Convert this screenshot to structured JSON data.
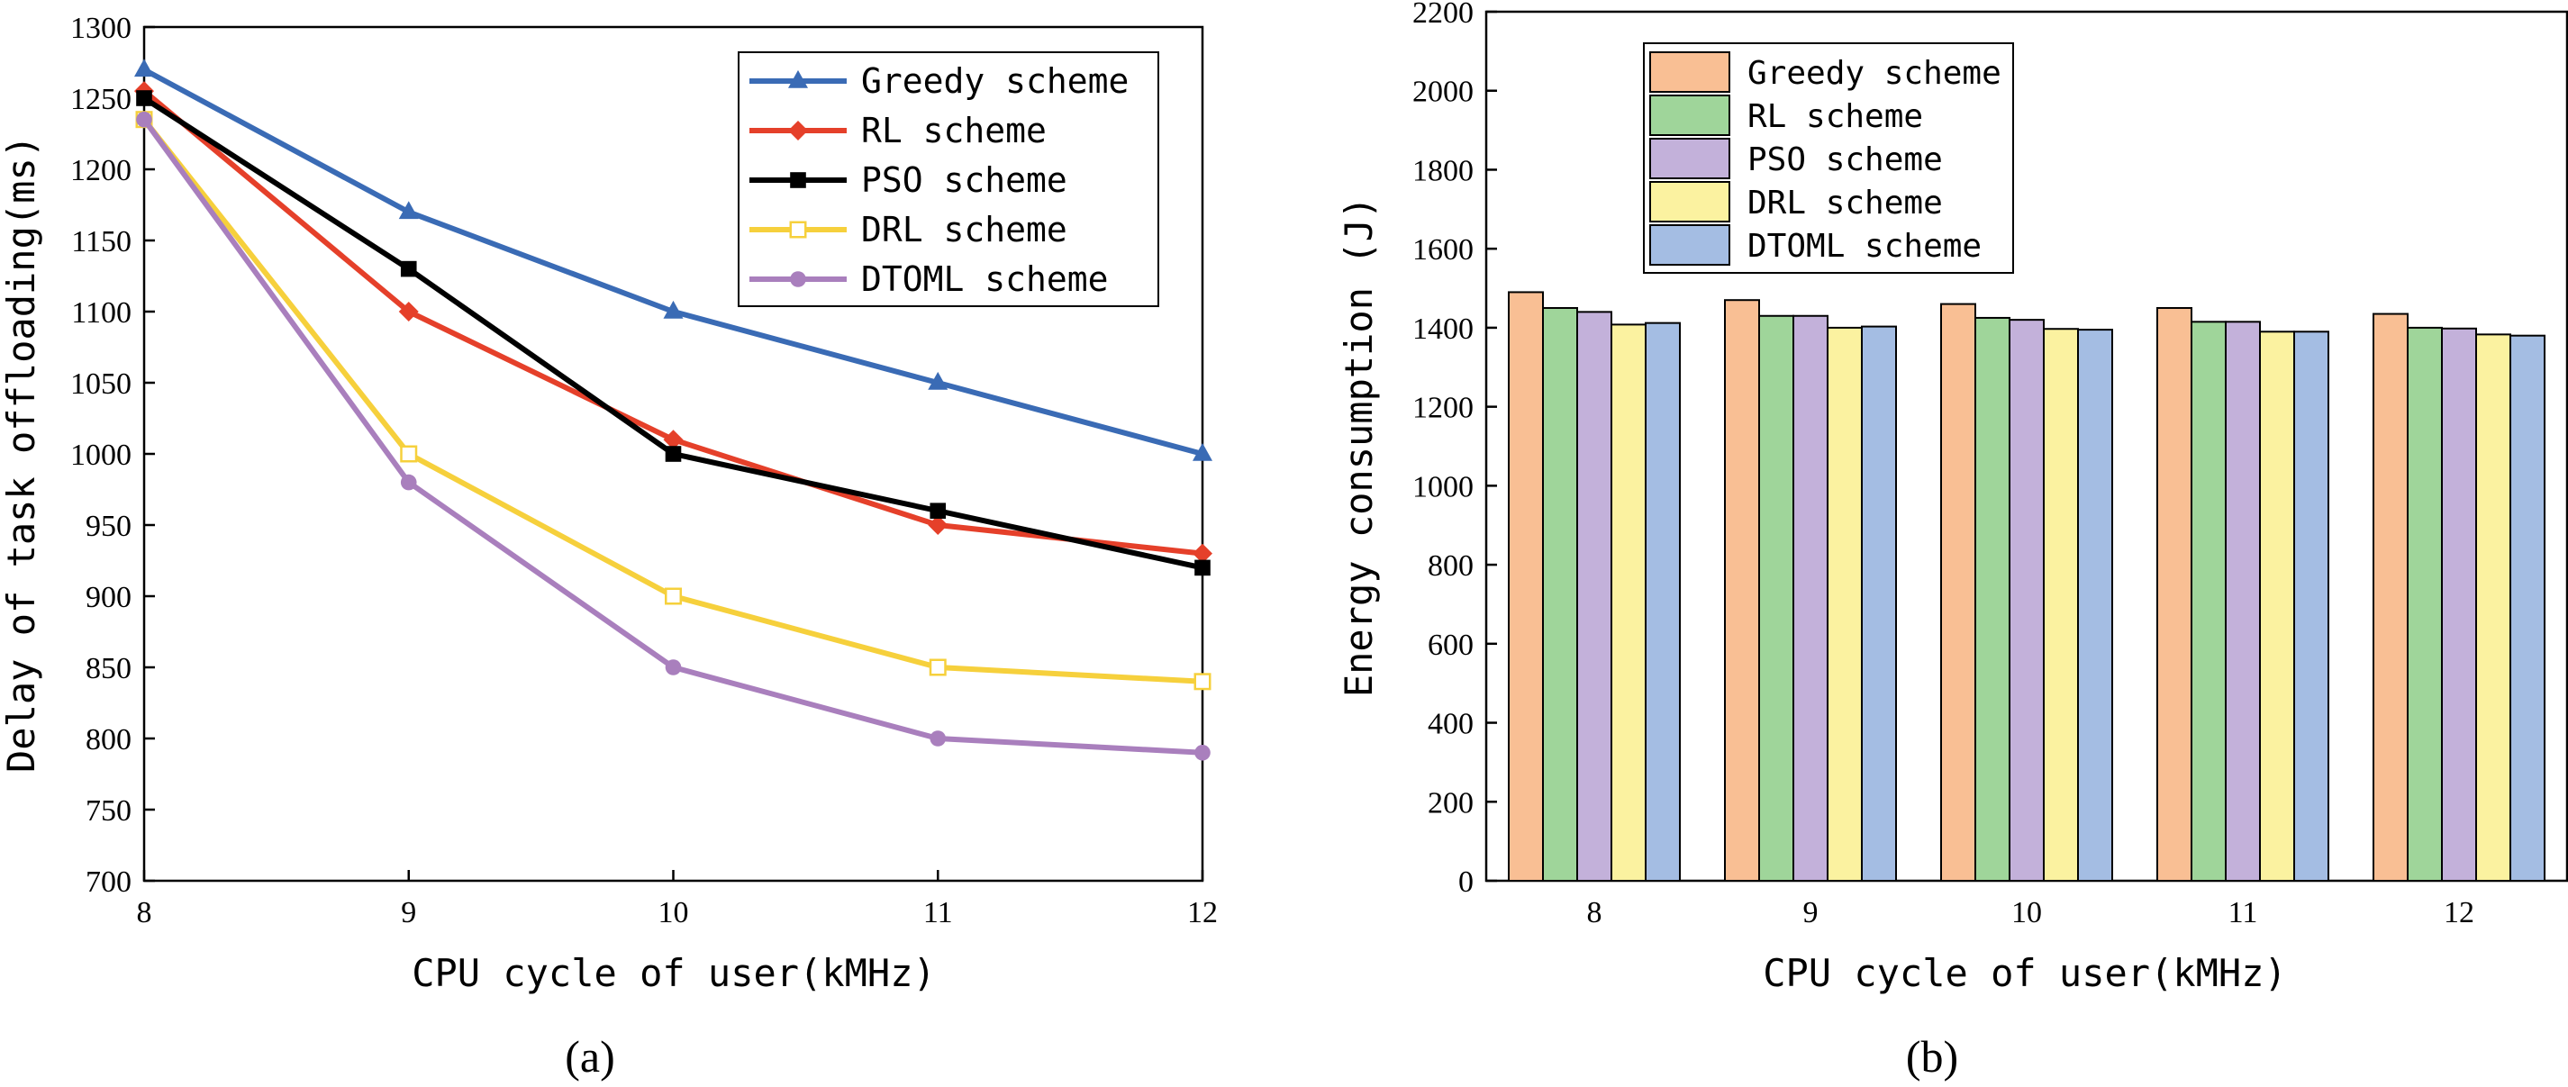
{
  "chart_data": [
    {
      "type": "line",
      "panel_label": "(a)",
      "xlabel": "CPU cycle of user(kMHz)",
      "ylabel": "Delay of task offloading(ms)",
      "x": [
        8,
        9,
        10,
        11,
        12
      ],
      "xlim": [
        8,
        12
      ],
      "ylim": [
        700,
        1300
      ],
      "xticks": [
        "8",
        "9",
        "10",
        "11",
        "12"
      ],
      "yticks": [
        "700",
        "750",
        "800",
        "850",
        "900",
        "950",
        "1000",
        "1050",
        "1100",
        "1150",
        "1200",
        "1250",
        "1300"
      ],
      "legend_position": "top-right",
      "series": [
        {
          "name": "Greedy scheme",
          "values": [
            1270,
            1170,
            1100,
            1050,
            1000
          ],
          "color": "#3a6bb5",
          "marker": "triangle"
        },
        {
          "name": "RL scheme",
          "values": [
            1255,
            1100,
            1010,
            950,
            930
          ],
          "color": "#e5402a",
          "marker": "diamond"
        },
        {
          "name": "PSO scheme",
          "values": [
            1250,
            1130,
            1000,
            960,
            920
          ],
          "color": "#000000",
          "marker": "square"
        },
        {
          "name": "DRL scheme",
          "values": [
            1235,
            1000,
            900,
            850,
            840
          ],
          "color": "#f6d03c",
          "marker": "open-square"
        },
        {
          "name": "DTOML scheme",
          "values": [
            1235,
            980,
            850,
            800,
            790
          ],
          "color": "#a97fbd",
          "marker": "circle"
        }
      ]
    },
    {
      "type": "bar",
      "panel_label": "(b)",
      "xlabel": "CPU cycle of user(kMHz)",
      "ylabel": "Energy consumption (J)",
      "categories": [
        "8",
        "9",
        "10",
        "11",
        "12"
      ],
      "ylim": [
        0,
        2200
      ],
      "yticks": [
        "0",
        "200",
        "400",
        "600",
        "800",
        "1000",
        "1200",
        "1400",
        "1600",
        "1800",
        "2000",
        "2200"
      ],
      "legend_position": "top-left",
      "series": [
        {
          "name": "Greedy scheme",
          "values": [
            1490,
            1470,
            1460,
            1450,
            1435
          ],
          "color": "#f9bf94"
        },
        {
          "name": "RL scheme",
          "values": [
            1450,
            1430,
            1425,
            1415,
            1400
          ],
          "color": "#9fd59a"
        },
        {
          "name": "PSO scheme",
          "values": [
            1440,
            1430,
            1420,
            1415,
            1398
          ],
          "color": "#c3b1da"
        },
        {
          "name": "DRL scheme",
          "values": [
            1408,
            1400,
            1397,
            1390,
            1383
          ],
          "color": "#fbf2a0"
        },
        {
          "name": "DTOML scheme",
          "values": [
            1412,
            1403,
            1395,
            1390,
            1380
          ],
          "color": "#a4bde3"
        }
      ]
    }
  ]
}
